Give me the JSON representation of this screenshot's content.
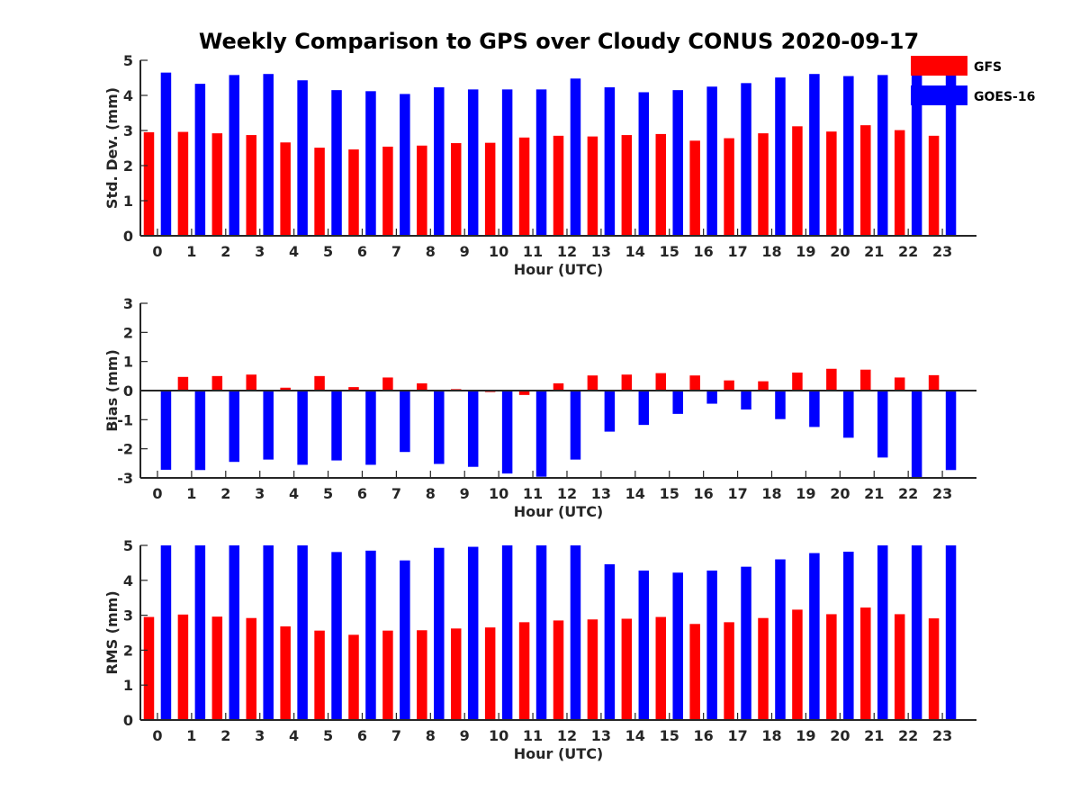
{
  "title": "Weekly Comparison to GPS over Cloudy CONUS 2020-09-17",
  "legend": {
    "placement": "top-right",
    "entries": [
      {
        "label": "GFS",
        "color": "#ff0000"
      },
      {
        "label": "GOES-16",
        "color": "#0000ff"
      }
    ]
  },
  "chart_data": [
    {
      "type": "bar",
      "xlabel": "Hour (UTC)",
      "ylabel": "Std. Dev. (mm)",
      "ylim": [
        0,
        5
      ],
      "yticks": [
        "0",
        "1",
        "2",
        "3",
        "4",
        "5"
      ],
      "categories": [
        "0",
        "1",
        "2",
        "3",
        "4",
        "5",
        "6",
        "7",
        "8",
        "9",
        "10",
        "11",
        "12",
        "13",
        "14",
        "15",
        "16",
        "17",
        "18",
        "19",
        "20",
        "21",
        "22",
        "23"
      ],
      "series": [
        {
          "name": "GFS",
          "color": "#ff0000",
          "values": [
            2.95,
            2.96,
            2.92,
            2.87,
            2.66,
            2.51,
            2.46,
            2.54,
            2.57,
            2.64,
            2.65,
            2.8,
            2.85,
            2.83,
            2.87,
            2.9,
            2.71,
            2.78,
            2.92,
            3.12,
            2.97,
            3.15,
            3.01,
            2.85
          ]
        },
        {
          "name": "GOES-16",
          "color": "#0000ff",
          "values": [
            4.65,
            4.33,
            4.58,
            4.61,
            4.43,
            4.15,
            4.12,
            4.04,
            4.23,
            4.17,
            4.17,
            4.17,
            4.48,
            4.23,
            4.09,
            4.15,
            4.25,
            4.35,
            4.51,
            4.61,
            4.55,
            4.58,
            4.73,
            4.6
          ]
        }
      ]
    },
    {
      "type": "bar",
      "xlabel": "Hour (UTC)",
      "ylabel": "Bias (mm)",
      "ylim": [
        -3,
        3
      ],
      "yticks": [
        "-3",
        "-2",
        "-1",
        "0",
        "1",
        "2",
        "3"
      ],
      "categories": [
        "0",
        "1",
        "2",
        "3",
        "4",
        "5",
        "6",
        "7",
        "8",
        "9",
        "10",
        "11",
        "12",
        "13",
        "14",
        "15",
        "16",
        "17",
        "18",
        "19",
        "20",
        "21",
        "22",
        "23"
      ],
      "series": [
        {
          "name": "GFS",
          "color": "#ff0000",
          "values": [
            0.0,
            0.47,
            0.5,
            0.55,
            0.1,
            0.5,
            0.12,
            0.45,
            0.25,
            0.05,
            -0.05,
            -0.15,
            0.25,
            0.52,
            0.55,
            0.6,
            0.52,
            0.35,
            0.32,
            0.62,
            0.75,
            0.72,
            0.45,
            0.53
          ]
        },
        {
          "name": "GOES-16",
          "color": "#0000ff",
          "values": [
            -2.72,
            -2.73,
            -2.45,
            -2.37,
            -2.55,
            -2.4,
            -2.55,
            -2.11,
            -2.52,
            -2.62,
            -2.85,
            -2.96,
            -2.37,
            -1.41,
            -1.18,
            -0.8,
            -0.45,
            -0.65,
            -0.98,
            -1.25,
            -1.62,
            -2.3,
            -3.0,
            -2.73
          ]
        }
      ]
    },
    {
      "type": "bar",
      "xlabel": "Hour (UTC)",
      "ylabel": "RMS (mm)",
      "ylim": [
        0,
        5
      ],
      "yticks": [
        "0",
        "1",
        "2",
        "3",
        "4",
        "5"
      ],
      "categories": [
        "0",
        "1",
        "2",
        "3",
        "4",
        "5",
        "6",
        "7",
        "8",
        "9",
        "10",
        "11",
        "12",
        "13",
        "14",
        "15",
        "16",
        "17",
        "18",
        "19",
        "20",
        "21",
        "22",
        "23"
      ],
      "series": [
        {
          "name": "GFS",
          "color": "#ff0000",
          "values": [
            2.95,
            3.02,
            2.96,
            2.92,
            2.68,
            2.56,
            2.44,
            2.56,
            2.57,
            2.62,
            2.65,
            2.8,
            2.85,
            2.88,
            2.9,
            2.95,
            2.75,
            2.8,
            2.92,
            3.16,
            3.03,
            3.22,
            3.03,
            2.91
          ]
        },
        {
          "name": "GOES-16",
          "color": "#0000ff",
          "values": [
            5.0,
            5.0,
            5.0,
            5.0,
            5.0,
            4.81,
            4.85,
            4.57,
            4.93,
            4.96,
            5.0,
            5.0,
            5.0,
            4.46,
            4.28,
            4.22,
            4.28,
            4.39,
            4.6,
            4.78,
            4.82,
            5.0,
            5.0,
            5.0
          ]
        }
      ]
    }
  ]
}
